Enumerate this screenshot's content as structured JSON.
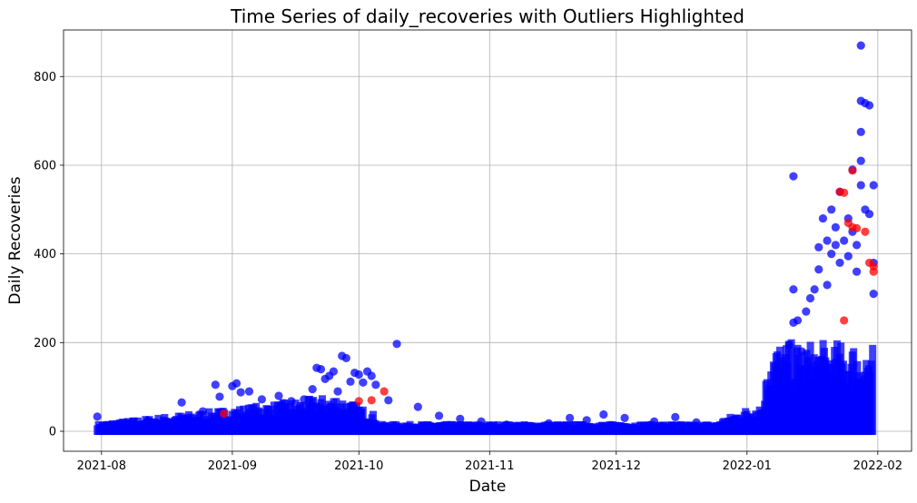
{
  "chart_data": {
    "type": "scatter",
    "title": "Time Series of daily_recoveries with Outliers Highlighted",
    "xlabel": "Date",
    "ylabel": "Daily Recoveries",
    "x_axis_type": "date",
    "xlim": [
      "2021-07-23",
      "2022-02-09"
    ],
    "ylim": [
      -45,
      905
    ],
    "x_ticks": [
      "2021-08",
      "2021-09",
      "2021-10",
      "2021-11",
      "2021-12",
      "2022-01",
      "2022-02"
    ],
    "y_ticks": [
      0,
      200,
      400,
      600,
      800
    ],
    "grid": true,
    "colors": {
      "normal": "#0000ff",
      "outlier": "#ff0000"
    },
    "series": [
      {
        "role": "normal",
        "points": [
          [
            "2021-07-31",
            33
          ],
          [
            "2021-08-05",
            18
          ],
          [
            "2021-08-12",
            24
          ],
          [
            "2021-08-20",
            65
          ],
          [
            "2021-08-25",
            45
          ],
          [
            "2021-08-28",
            105
          ],
          [
            "2021-08-29",
            78
          ],
          [
            "2021-09-01",
            102
          ],
          [
            "2021-09-02",
            108
          ],
          [
            "2021-09-03",
            88
          ],
          [
            "2021-09-05",
            90
          ],
          [
            "2021-09-08",
            72
          ],
          [
            "2021-09-12",
            80
          ],
          [
            "2021-09-15",
            68
          ],
          [
            "2021-09-18",
            72
          ],
          [
            "2021-09-20",
            95
          ],
          [
            "2021-09-21",
            143
          ],
          [
            "2021-09-22",
            140
          ],
          [
            "2021-09-23",
            118
          ],
          [
            "2021-09-24",
            125
          ],
          [
            "2021-09-25",
            135
          ],
          [
            "2021-09-26",
            90
          ],
          [
            "2021-09-27",
            170
          ],
          [
            "2021-09-28",
            165
          ],
          [
            "2021-09-29",
            112
          ],
          [
            "2021-09-30",
            132
          ],
          [
            "2021-10-01",
            128
          ],
          [
            "2021-10-02",
            110
          ],
          [
            "2021-10-03",
            135
          ],
          [
            "2021-10-04",
            125
          ],
          [
            "2021-10-05",
            105
          ],
          [
            "2021-10-08",
            70
          ],
          [
            "2021-10-10",
            197
          ],
          [
            "2021-10-15",
            55
          ],
          [
            "2021-10-20",
            35
          ],
          [
            "2021-10-25",
            28
          ],
          [
            "2021-10-30",
            22
          ],
          [
            "2021-11-05",
            15
          ],
          [
            "2021-11-15",
            18
          ],
          [
            "2021-11-20",
            30
          ],
          [
            "2021-11-24",
            25
          ],
          [
            "2021-11-28",
            38
          ],
          [
            "2021-12-03",
            30
          ],
          [
            "2021-12-10",
            22
          ],
          [
            "2021-12-15",
            32
          ],
          [
            "2021-12-20",
            20
          ],
          [
            "2021-12-28",
            18
          ],
          [
            "2022-01-01",
            22
          ],
          [
            "2022-01-05",
            40
          ],
          [
            "2022-01-08",
            60
          ],
          [
            "2022-01-10",
            90
          ],
          [
            "2022-01-11",
            195
          ],
          [
            "2022-01-12",
            575
          ],
          [
            "2022-01-12",
            320
          ],
          [
            "2022-01-12",
            245
          ],
          [
            "2022-01-13",
            250
          ],
          [
            "2022-01-14",
            180
          ],
          [
            "2022-01-15",
            270
          ],
          [
            "2022-01-16",
            300
          ],
          [
            "2022-01-17",
            320
          ],
          [
            "2022-01-18",
            415
          ],
          [
            "2022-01-18",
            365
          ],
          [
            "2022-01-19",
            480
          ],
          [
            "2022-01-20",
            430
          ],
          [
            "2022-01-20",
            330
          ],
          [
            "2022-01-21",
            500
          ],
          [
            "2022-01-21",
            400
          ],
          [
            "2022-01-22",
            460
          ],
          [
            "2022-01-22",
            420
          ],
          [
            "2022-01-23",
            540
          ],
          [
            "2022-01-23",
            380
          ],
          [
            "2022-01-24",
            430
          ],
          [
            "2022-01-25",
            480
          ],
          [
            "2022-01-25",
            395
          ],
          [
            "2022-01-26",
            590
          ],
          [
            "2022-01-26",
            450
          ],
          [
            "2022-01-27",
            420
          ],
          [
            "2022-01-27",
            360
          ],
          [
            "2022-01-28",
            870
          ],
          [
            "2022-01-28",
            745
          ],
          [
            "2022-01-28",
            675
          ],
          [
            "2022-01-28",
            610
          ],
          [
            "2022-01-28",
            555
          ],
          [
            "2022-01-29",
            740
          ],
          [
            "2022-01-29",
            500
          ],
          [
            "2022-01-30",
            735
          ],
          [
            "2022-01-30",
            490
          ],
          [
            "2022-01-31",
            555
          ],
          [
            "2022-01-31",
            380
          ],
          [
            "2022-01-31",
            310
          ]
        ]
      },
      {
        "role": "outlier",
        "points": [
          [
            "2021-08-30",
            40
          ],
          [
            "2021-10-01",
            68
          ],
          [
            "2021-10-04",
            70
          ],
          [
            "2021-10-07",
            90
          ],
          [
            "2022-01-23",
            540
          ],
          [
            "2022-01-24",
            538
          ],
          [
            "2022-01-25",
            470
          ],
          [
            "2022-01-26",
            588
          ],
          [
            "2022-01-26",
            460
          ],
          [
            "2022-01-27",
            458
          ],
          [
            "2022-01-24",
            250
          ],
          [
            "2022-01-30",
            380
          ],
          [
            "2022-01-31",
            372
          ],
          [
            "2022-01-31",
            360
          ],
          [
            "2022-01-29",
            450
          ]
        ]
      }
    ]
  }
}
